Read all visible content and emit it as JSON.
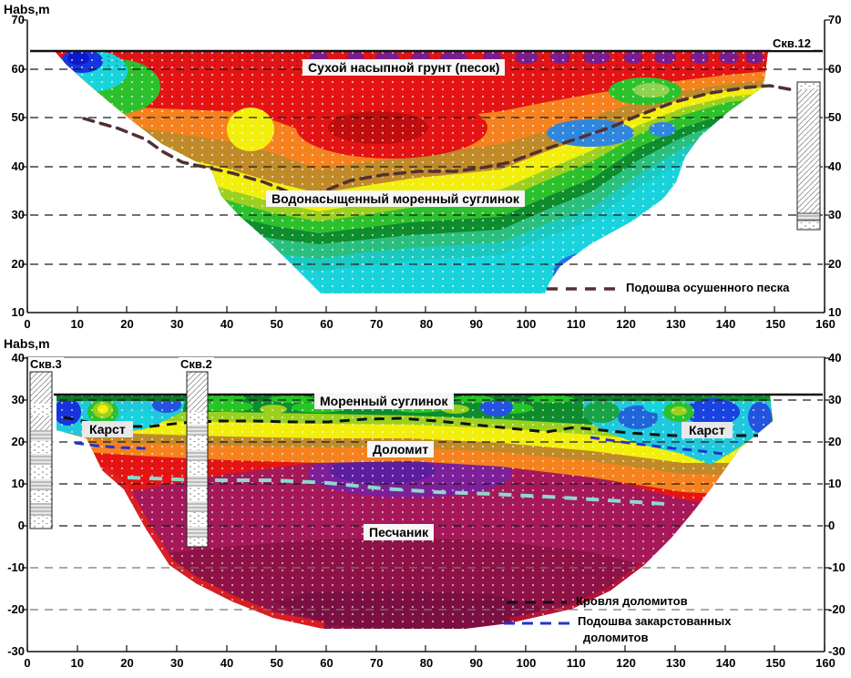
{
  "panel_top": {
    "axis_label": "Habs,m",
    "y_ticks_left": [
      "70",
      "60",
      "50",
      "40",
      "30",
      "20",
      "10"
    ],
    "y_ticks_right": [
      "70",
      "60",
      "50",
      "40",
      "30",
      "20",
      "10"
    ],
    "x_ticks": [
      "0",
      "10",
      "20",
      "30",
      "40",
      "50",
      "60",
      "70",
      "80",
      "90",
      "100",
      "110",
      "120",
      "130",
      "140",
      "150",
      "160"
    ],
    "labels": {
      "dry_fill": "Сухой насыпной грунт (песок)",
      "wet_loam": "Водонасыщенный моренный суглинок",
      "borehole12": "Скв.12",
      "legend_sand_base": "Подошва осушенного песка"
    }
  },
  "panel_bottom": {
    "axis_label": "Habs,m",
    "y_ticks_left": [
      "40",
      "30",
      "20",
      "10",
      "0",
      "-10",
      "-20",
      "-30"
    ],
    "y_ticks_right": [
      "40",
      "30",
      "20",
      "10",
      "0",
      "-10",
      "-20",
      "-30"
    ],
    "x_ticks": [
      "0",
      "10",
      "20",
      "30",
      "40",
      "50",
      "60",
      "70",
      "80",
      "90",
      "100",
      "110",
      "120",
      "130",
      "140",
      "150",
      "160"
    ],
    "labels": {
      "borehole3": "Скв.3",
      "borehole2": "Скв.2",
      "moraine": "Моренный суглинок",
      "karst_left": "Карст",
      "karst_right": "Карст",
      "dolomite": "Доломит",
      "sandstone": "Песчаник",
      "legend_dolomite_top": "Кровля доломитов",
      "legend_karst_base_line1": "Подошва закарстованных",
      "legend_karst_base_line2": "доломитов"
    }
  },
  "colors": {
    "sand_base_line": "#513030",
    "dolomite_top_line": "#111111",
    "karst_base_line": "#2233cc",
    "pale_teal_line": "#8fd8cf",
    "grid_line": "#1a1a1a",
    "surface_line": "#111111"
  },
  "chart_data": [
    {
      "type": "heatmap",
      "panel": "top",
      "ylabel": "Habs,m",
      "xlim": [
        0,
        160
      ],
      "ylim": [
        10,
        70
      ],
      "x_ticks": [
        0,
        10,
        20,
        30,
        40,
        50,
        60,
        70,
        80,
        90,
        100,
        110,
        120,
        130,
        140,
        150,
        160
      ],
      "y_ticks": [
        10,
        20,
        30,
        40,
        50,
        60,
        70
      ],
      "grid": true,
      "surface_elevation_m": 63.5,
      "section_bottom_elevation_m": 15,
      "zone_labels": [
        "Сухой насыпной грунт (песок)",
        "Водонасыщенный моренный суглинок"
      ],
      "boreholes": [
        {
          "name": "Скв.12",
          "x_m": 150,
          "top_elevation_m": 57,
          "bottom_elevation_m": 24
        }
      ],
      "legend": [
        {
          "label": "Подошва осушенного песка",
          "style": "dashed",
          "color": "#513030"
        }
      ],
      "color_scale_low_to_high": [
        "#0b18cc",
        "#1535e0",
        "#2b6be8",
        "#19d3dc",
        "#1cc9c0",
        "#2abf7f",
        "#0e8c2e",
        "#2cc12c",
        "#9cd01e",
        "#f2ef0c",
        "#c08a28",
        "#f5821e",
        "#e51414",
        "#c00d0d",
        "#6e1fa0"
      ]
    },
    {
      "type": "heatmap",
      "panel": "bottom",
      "ylabel": "Habs,m",
      "xlim": [
        0,
        160
      ],
      "ylim": [
        -30,
        40
      ],
      "x_ticks": [
        0,
        10,
        20,
        30,
        40,
        50,
        60,
        70,
        80,
        90,
        100,
        110,
        120,
        130,
        140,
        150,
        160
      ],
      "y_ticks": [
        -30,
        -20,
        -10,
        0,
        10,
        20,
        30,
        40
      ],
      "grid": true,
      "surface_elevation_m": 31,
      "section_bottom_elevation_m": -25,
      "zone_labels": [
        "Моренный суглинок",
        "Карст",
        "Карст",
        "Доломит",
        "Песчаник"
      ],
      "boreholes": [
        {
          "name": "Скв.3",
          "x_m": 3,
          "top_elevation_m": 37,
          "bottom_elevation_m": 0
        },
        {
          "name": "Скв.2",
          "x_m": 34,
          "top_elevation_m": 37,
          "bottom_elevation_m": -5
        }
      ],
      "legend": [
        {
          "label": "Кровля доломитов",
          "style": "dashed",
          "color": "#111111"
        },
        {
          "label": "Подошва закарстованных доломитов",
          "style": "dashed",
          "color": "#2233cc"
        }
      ]
    }
  ]
}
